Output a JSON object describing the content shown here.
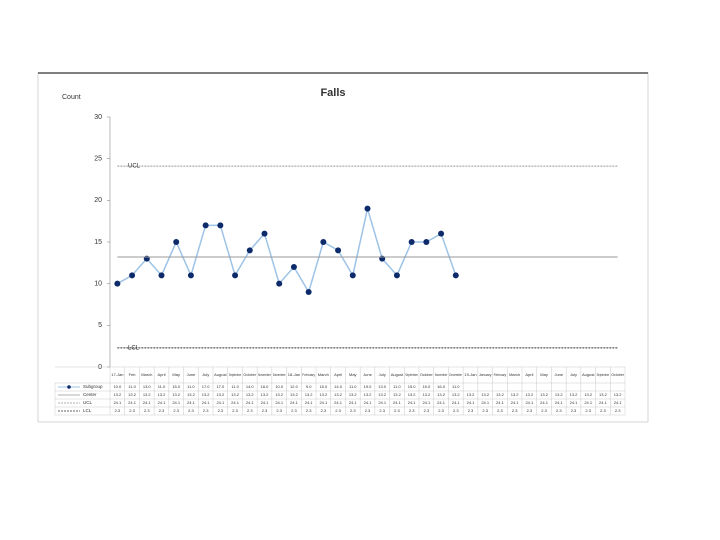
{
  "chart_data": {
    "type": "line",
    "title": "Falls",
    "y_label": "Count",
    "categories": [
      "17-Jan",
      "Feb",
      "March",
      "April",
      "May",
      "June",
      "July",
      "August",
      "September",
      "October",
      "November",
      "December",
      "18-Jan",
      "February",
      "March",
      "April",
      "May",
      "June",
      "July",
      "August",
      "September",
      "October",
      "November",
      "December",
      "19-Jan",
      "January",
      "February",
      "March",
      "April",
      "May",
      "June",
      "July",
      "August",
      "September",
      "October"
    ],
    "ylim": [
      0,
      30
    ],
    "yticks": [
      0,
      5,
      10,
      15,
      20,
      25,
      30
    ],
    "series": [
      {
        "name": "Subgroup",
        "color": "#9dc3e6",
        "marker_color": "#0d2a6b",
        "values": [
          10,
          11,
          13,
          11,
          15,
          11,
          17,
          17,
          11,
          14,
          16,
          10,
          12,
          9,
          15,
          14,
          11,
          19,
          13,
          11,
          15,
          15,
          16,
          11,
          null,
          null,
          null,
          null,
          null,
          null,
          null,
          null,
          null,
          null,
          null
        ],
        "value_labels": [
          "10.0",
          "11.0",
          "13.0",
          "11.0",
          "15.0",
          "11.0",
          "17.0",
          "17.0",
          "11.0",
          "14.0",
          "16.0",
          "10.0",
          "12.0",
          "9.0",
          "15.0",
          "14.0",
          "11.0",
          "19.0",
          "13.0",
          "11.0",
          "15.0",
          "15.0",
          "16.0",
          "11.0",
          null,
          null,
          null,
          null,
          null,
          null,
          null,
          null,
          null,
          null,
          null
        ]
      },
      {
        "name": "Center",
        "color": "#999999",
        "dash": "none",
        "values": [
          13.2,
          13.2,
          13.2,
          13.2,
          13.2,
          13.2,
          13.2,
          13.2,
          13.2,
          13.2,
          13.2,
          13.2,
          13.2,
          13.2,
          13.2,
          13.2,
          13.2,
          13.2,
          13.2,
          13.2,
          13.2,
          13.2,
          13.2,
          13.2,
          13.2,
          13.2,
          13.2,
          13.2,
          13.2,
          13.2,
          13.2,
          13.2,
          13.2,
          13.2,
          13.2
        ]
      },
      {
        "name": "UCL",
        "color": "#999999",
        "dash": "2,1",
        "values": [
          24.1,
          24.1,
          24.1,
          24.1,
          24.1,
          24.1,
          24.1,
          24.1,
          24.1,
          24.1,
          24.1,
          24.1,
          24.1,
          24.1,
          24.1,
          24.1,
          24.1,
          24.1,
          24.1,
          24.1,
          24.1,
          24.1,
          24.1,
          24.1,
          24.1,
          24.1,
          24.1,
          24.1,
          24.1,
          24.1,
          24.1,
          24.1,
          24.1,
          24.1,
          24.1
        ]
      },
      {
        "name": "LCL",
        "color": "#333333",
        "dash": "2,1",
        "values": [
          2.3,
          2.3,
          2.3,
          2.3,
          2.3,
          2.3,
          2.3,
          2.3,
          2.3,
          2.3,
          2.3,
          2.3,
          2.3,
          2.3,
          2.3,
          2.3,
          2.3,
          2.3,
          2.3,
          2.3,
          2.3,
          2.3,
          2.3,
          2.3,
          2.3,
          2.3,
          2.3,
          2.3,
          2.3,
          2.3,
          2.3,
          2.3,
          2.3,
          2.3,
          2.3
        ]
      }
    ]
  }
}
